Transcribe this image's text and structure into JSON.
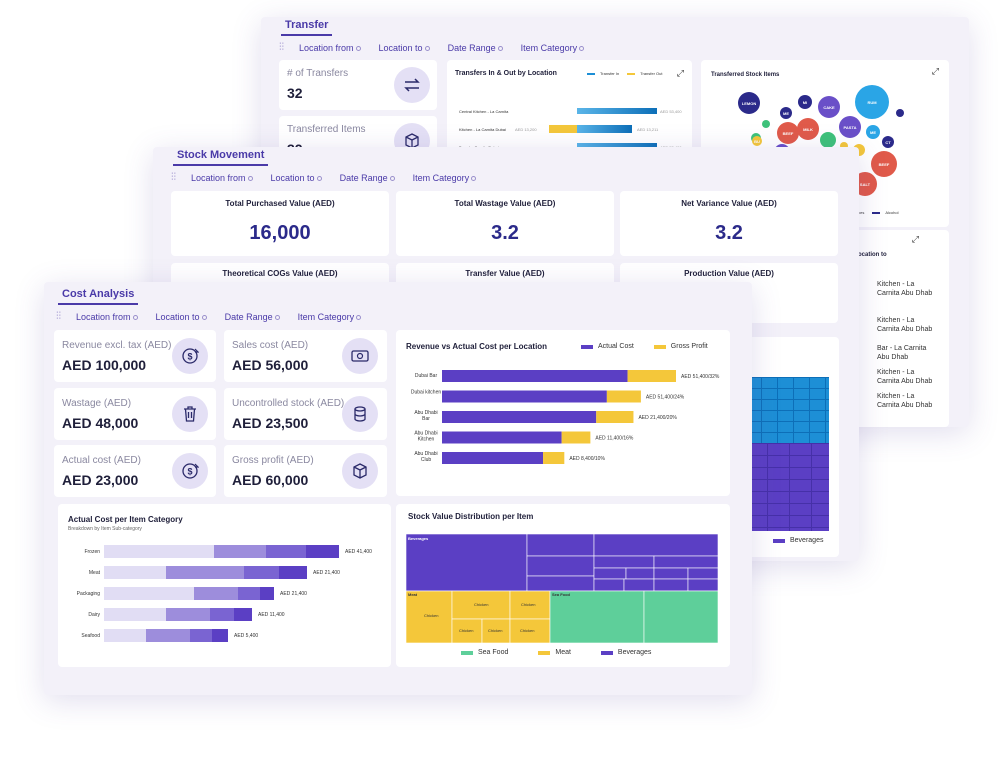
{
  "transfer": {
    "title": "Transfer",
    "filters": [
      "Location from",
      "Location to",
      "Date Range",
      "Item Category"
    ],
    "kpis": [
      {
        "label": "# of Transfers",
        "value": "32"
      },
      {
        "label": "Transferred Items",
        "value": "32"
      }
    ],
    "inout": {
      "title": "Transfers In & Out by Location",
      "legend": [
        "Transfer In",
        "Transfer Out"
      ],
      "rows": [
        {
          "label": "Central Kitchen - La Carnita",
          "value": "AED 53,400"
        },
        {
          "label": "Kitchen - La Carnita Dubai",
          "left": "AED 13,200",
          "value": "AED 13,211"
        },
        {
          "label": "Bar - La Carnita Dubai",
          "value": "AED 53,400"
        }
      ]
    },
    "bubble": {
      "title": "Transferred Stock Items",
      "bubbles": [
        "LEMON",
        "MI",
        "CAKE",
        "RUM",
        "ME",
        "BEEF",
        "MILK",
        "PASTA",
        "RC",
        "BU",
        "ME",
        "CT",
        "BEEF",
        "SALT"
      ],
      "legend": [
        "Sauces",
        "Alcohol"
      ]
    },
    "location_to": {
      "title": "ocation to",
      "items": [
        "Kitchen - La Carnita Abu Dhab",
        "Kitchen - La Carnita Abu Dhab",
        "Bar - La Carnita Abu Dhab",
        "Kitchen - La Carnita Abu Dhab",
        "Kitchen - La Carnita Abu Dhab"
      ]
    },
    "tree_legend": "Beverages"
  },
  "stock": {
    "title": "Stock Movement",
    "filters": [
      "Location from",
      "Location to",
      "Date Range",
      "Item Category"
    ],
    "kpis": [
      {
        "label": "Total Purchased Value (AED)",
        "value": "16,000"
      },
      {
        "label": "Total Wastage Value (AED)",
        "value": "3.2"
      },
      {
        "label": "Net Variance Value (AED)",
        "value": "3.2"
      },
      {
        "label": "Theoretical COGs Value (AED)"
      },
      {
        "label": "Transfer Value (AED)"
      },
      {
        "label": "Production Value (AED)"
      }
    ]
  },
  "cost": {
    "title": "Cost Analysis",
    "filters": [
      "Location from",
      "Location to",
      "Date Range",
      "Item Category"
    ],
    "kpis": [
      {
        "label": "Revenue excl. tax (AED)",
        "value": "AED 100,000",
        "icon": "dollar-arrow-icon"
      },
      {
        "label": "Sales cost (AED)",
        "value": "AED 56,000",
        "icon": "cash-icon"
      },
      {
        "label": "Wastage (AED)",
        "value": "AED 48,000",
        "icon": "trash-icon"
      },
      {
        "label": "Uncontrolled stock (AED)",
        "value": "AED 23,500",
        "icon": "coins-icon"
      },
      {
        "label": "Actual cost (AED)",
        "value": "AED 23,000",
        "icon": "dollar-arrow-icon"
      },
      {
        "label": "Gross profit (AED)",
        "value": "AED 60,000",
        "icon": "box-icon"
      }
    ],
    "colors": {
      "purple": "#5b3fc4",
      "yellow": "#f4c73a",
      "green": "#5ecf9a",
      "light_purple": "#d9d4f2"
    }
  },
  "chart_data": [
    {
      "type": "bar",
      "orientation": "horizontal",
      "title": "Revenue vs Actual Cost per Location",
      "categories": [
        "Dubai Bar",
        "Dubai kitchen",
        "Abu Dhabi Bar",
        "Abu Dhabi Kitchen",
        "Abu Dhabi Club"
      ],
      "series": [
        {
          "name": "Actual Cost",
          "values": [
            34900,
            31000,
            29000,
            22500,
            19000
          ]
        },
        {
          "name": "Gross Profit",
          "values": [
            9100,
            6400,
            7000,
            5400,
            4000
          ]
        }
      ],
      "data_labels": [
        "AED 51,400/32%",
        "AED 51,400/24%",
        "AED 21,400/20%",
        "AED 11,400/16%",
        "AED 8,400/10%"
      ]
    },
    {
      "type": "bar",
      "orientation": "horizontal",
      "stacked": true,
      "title": "Actual Cost per Item Category",
      "subtitle": "Breakdown by Item Sub-category",
      "categories": [
        "Frozen",
        "Meat",
        "Packaging",
        "Dairy",
        "Seafood"
      ],
      "series": [
        {
          "values": [
            110,
            62,
            90,
            62,
            42
          ]
        },
        {
          "values": [
            52,
            78,
            44,
            44,
            44
          ]
        },
        {
          "values": [
            40,
            35,
            22,
            24,
            22
          ]
        },
        {
          "values": [
            33,
            28,
            14,
            18,
            16
          ]
        }
      ],
      "data_labels": [
        "AED 41,400",
        "AED 21,400",
        "AED 21,400",
        "AED 11,400",
        "AED 5,400"
      ]
    },
    {
      "type": "heatmap",
      "title": "Stock Value Distribution per Item",
      "legend": [
        "Sea Food",
        "Meat",
        "Beverages"
      ],
      "groups": [
        {
          "name": "Beverages",
          "share": 0.55
        },
        {
          "name": "Meat",
          "share": 0.2
        },
        {
          "name": "Sea Food",
          "share": 0.25
        }
      ],
      "tile_labels": [
        "Beverages",
        "Meat",
        "Chicken",
        "Chicken",
        "Chicken",
        "Chicken",
        "Chicken",
        "Chicken",
        "Sea Food"
      ]
    }
  ]
}
